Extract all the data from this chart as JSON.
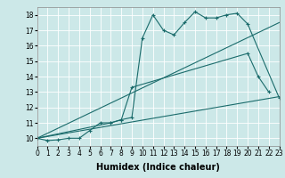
{
  "xlabel": "Humidex (Indice chaleur)",
  "xlim": [
    0,
    23
  ],
  "ylim": [
    9.5,
    18.5
  ],
  "xticks": [
    0,
    1,
    2,
    3,
    4,
    5,
    6,
    7,
    8,
    9,
    10,
    11,
    12,
    13,
    14,
    15,
    16,
    17,
    18,
    19,
    20,
    21,
    22,
    23
  ],
  "yticks": [
    10,
    11,
    12,
    13,
    14,
    15,
    16,
    17,
    18
  ],
  "background_color": "#cce8e8",
  "grid_color": "#ffffff",
  "line_color": "#1a6b6b",
  "line1_x": [
    0,
    1,
    2,
    3,
    4,
    5,
    6,
    7,
    8,
    9,
    10,
    11,
    12,
    13,
    14,
    15,
    16,
    17,
    18,
    19,
    20,
    23
  ],
  "line1_y": [
    10,
    9.85,
    9.9,
    10,
    10,
    10.5,
    11,
    11,
    11.2,
    11.35,
    16.5,
    18,
    17,
    16.7,
    17.5,
    18.2,
    17.8,
    17.8,
    18,
    18.1,
    17.4,
    12.6
  ],
  "line2_x": [
    0,
    7,
    8,
    9,
    20,
    21,
    22
  ],
  "line2_y": [
    10,
    11,
    11.2,
    13.3,
    15.5,
    14.0,
    13.0
  ],
  "line3_x": [
    0,
    23
  ],
  "line3_y": [
    10,
    17.5
  ],
  "line4_x": [
    0,
    23
  ],
  "line4_y": [
    10,
    12.7
  ],
  "fontsize_label": 7,
  "fontsize_tick": 5.5
}
